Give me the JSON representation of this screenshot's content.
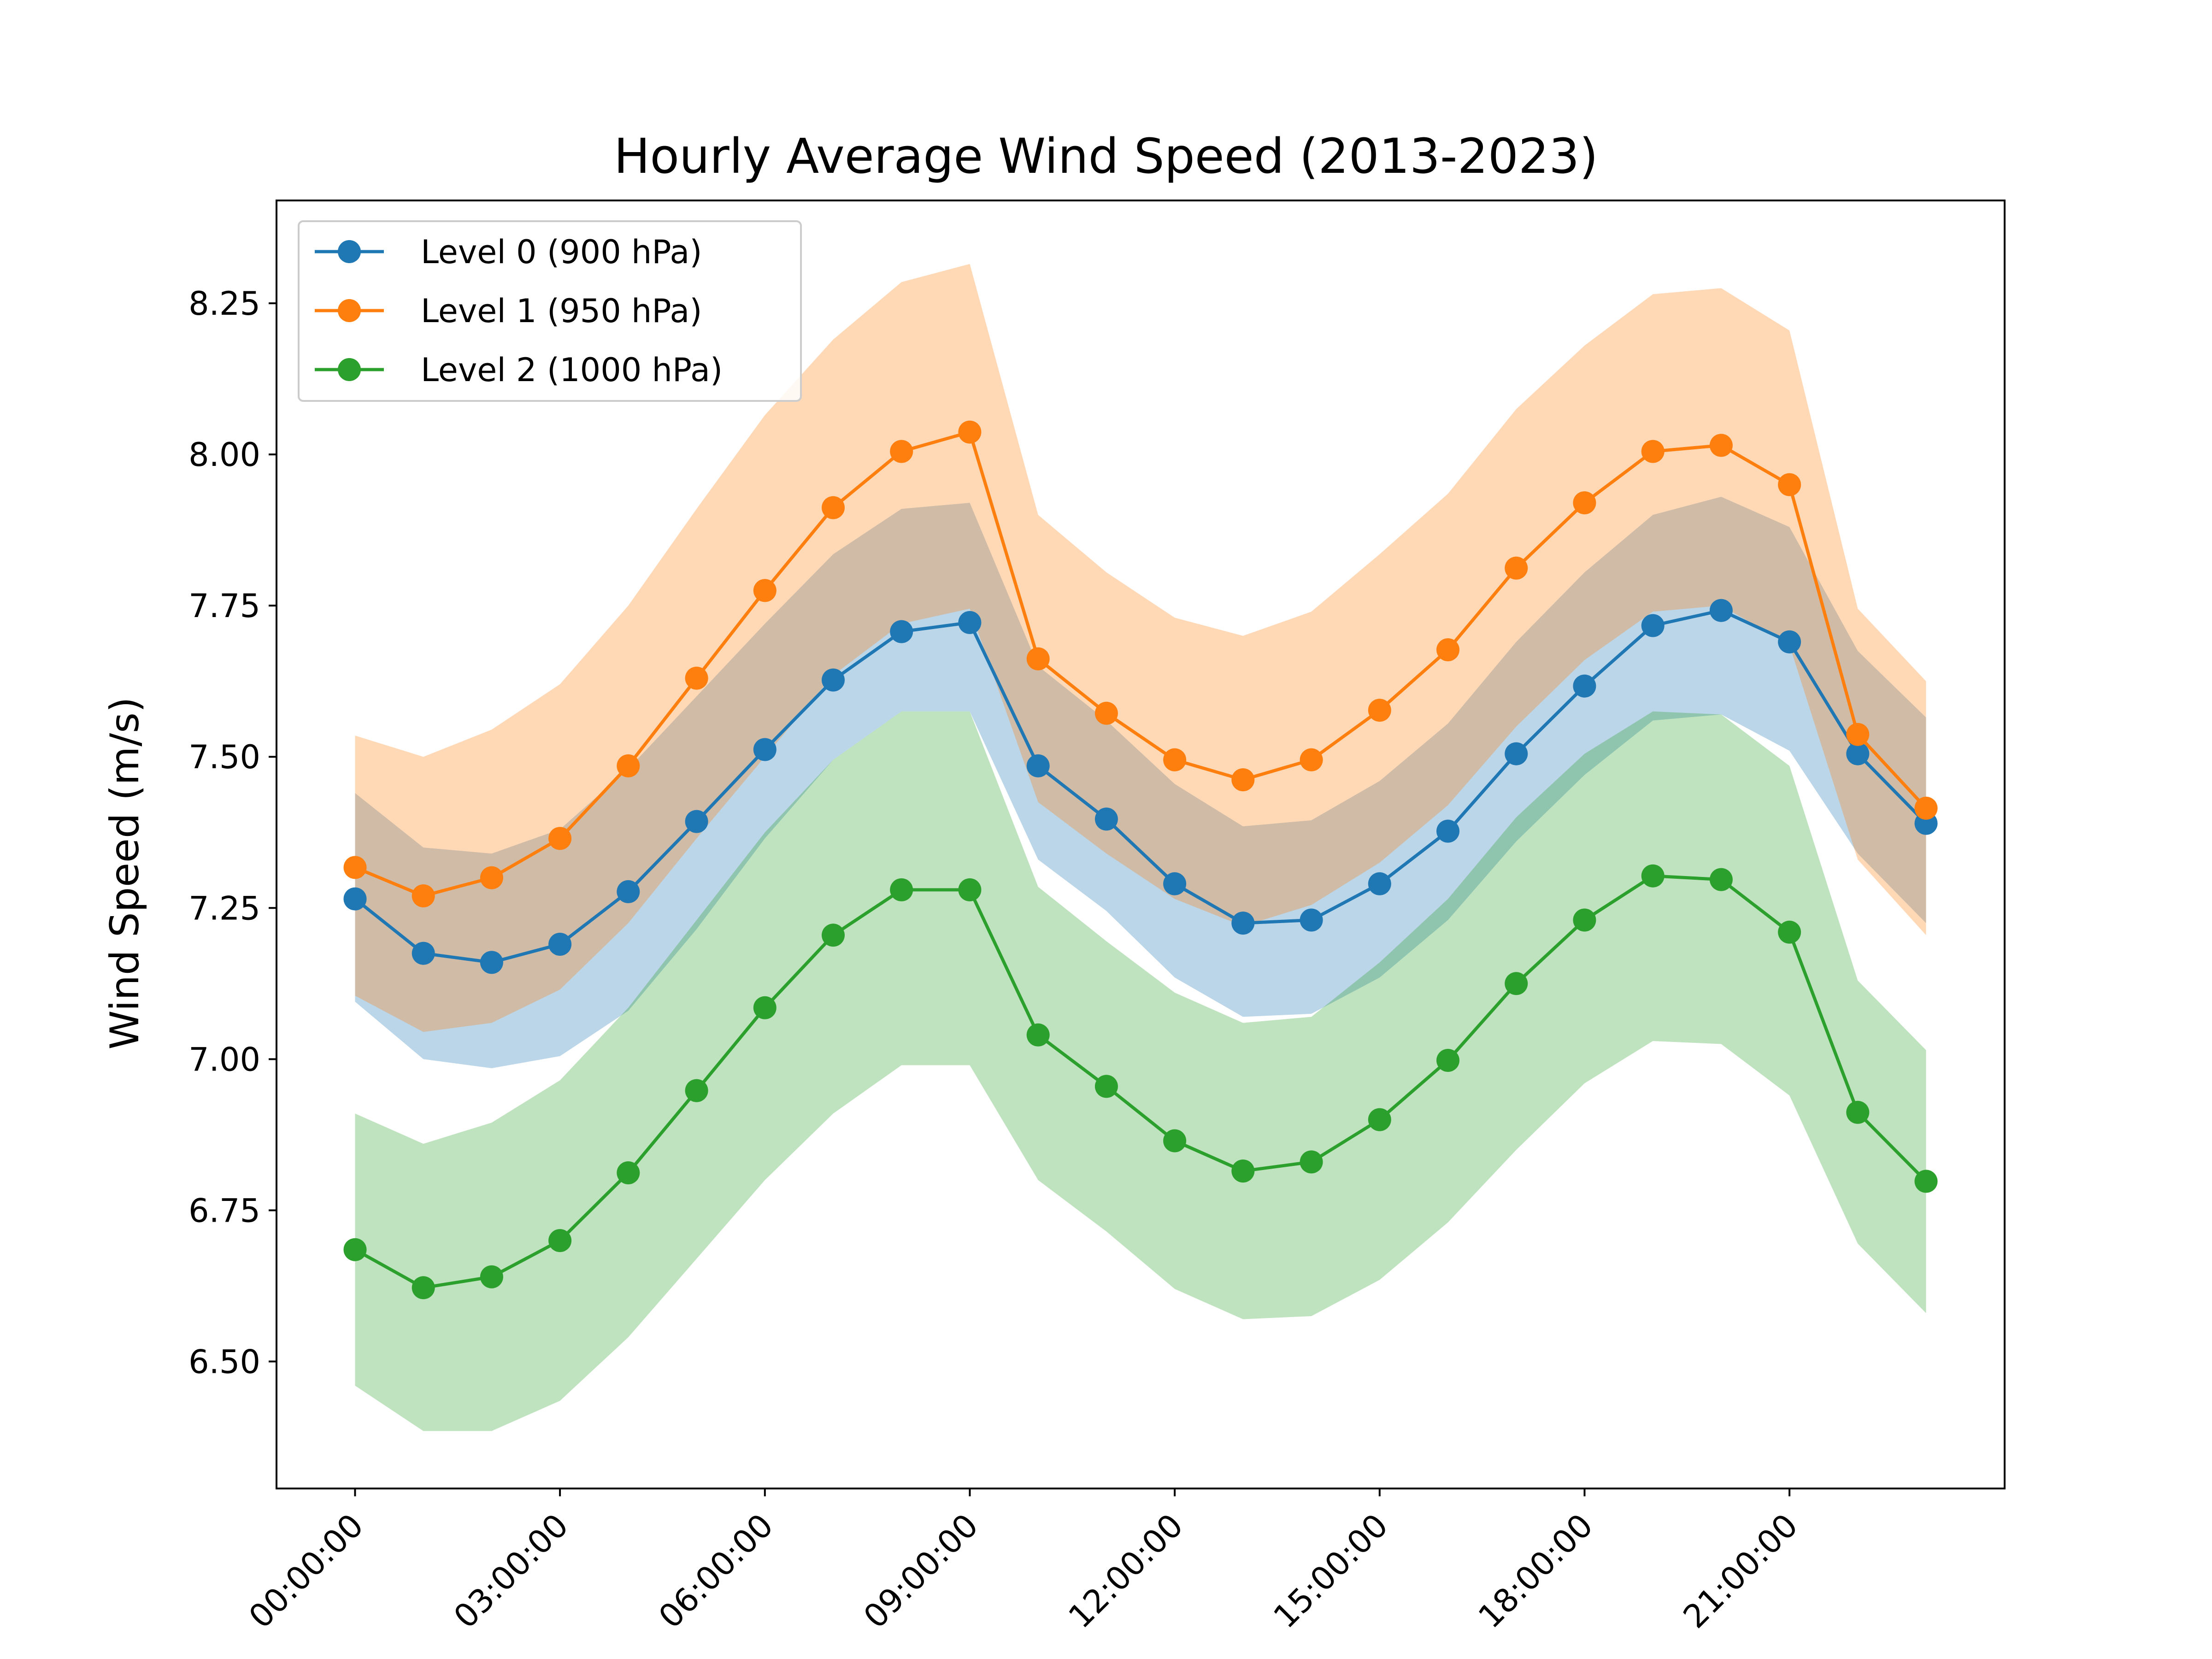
{
  "chart_data": {
    "type": "line",
    "title": "Hourly Average Wind Speed (2013-2023)",
    "xlabel": "",
    "ylabel": "Wind Speed (m/s)",
    "x": [
      "00:00:00",
      "01:00:00",
      "02:00:00",
      "03:00:00",
      "04:00:00",
      "05:00:00",
      "06:00:00",
      "07:00:00",
      "08:00:00",
      "09:00:00",
      "10:00:00",
      "11:00:00",
      "12:00:00",
      "13:00:00",
      "14:00:00",
      "15:00:00",
      "16:00:00",
      "17:00:00",
      "18:00:00",
      "19:00:00",
      "20:00:00",
      "21:00:00",
      "22:00:00",
      "23:00:00"
    ],
    "x_ticks": [
      "00:00:00",
      "03:00:00",
      "06:00:00",
      "09:00:00",
      "12:00:00",
      "15:00:00",
      "18:00:00",
      "21:00:00"
    ],
    "y_ticks": [
      "6.50",
      "6.75",
      "7.00",
      "7.25",
      "7.50",
      "7.75",
      "8.00",
      "8.25"
    ],
    "ylim": [
      6.29,
      8.42
    ],
    "xlim": [
      -1.15,
      24.15
    ],
    "grid": false,
    "legend_position": "top-left",
    "series": [
      {
        "name": "Level 0 (900 hPa)",
        "color": "#1f77b4",
        "band_color": "#a8c8e5",
        "values": [
          7.265,
          7.175,
          7.16,
          7.19,
          7.277,
          7.393,
          7.512,
          7.627,
          7.707,
          7.722,
          7.485,
          7.397,
          7.29,
          7.225,
          7.23,
          7.29,
          7.377,
          7.505,
          7.617,
          7.717,
          7.742,
          7.69,
          7.505,
          7.39
        ],
        "upper": [
          7.44,
          7.35,
          7.34,
          7.38,
          7.48,
          7.6,
          7.72,
          7.835,
          7.91,
          7.92,
          7.65,
          7.56,
          7.455,
          7.385,
          7.395,
          7.46,
          7.555,
          7.69,
          7.805,
          7.9,
          7.93,
          7.88,
          7.675,
          7.565
        ],
        "lower": [
          7.095,
          7.0,
          6.985,
          7.005,
          7.08,
          7.215,
          7.365,
          7.495,
          7.575,
          7.575,
          7.33,
          7.245,
          7.135,
          7.07,
          7.075,
          7.135,
          7.23,
          7.36,
          7.47,
          7.56,
          7.57,
          7.51,
          7.34,
          7.225
        ]
      },
      {
        "name": "Level 1 (950 hPa)",
        "color": "#ff7f0e",
        "band_color": "#ffd3ab",
        "values": [
          7.317,
          7.27,
          7.3,
          7.365,
          7.485,
          7.63,
          7.775,
          7.912,
          8.005,
          8.037,
          7.662,
          7.572,
          7.495,
          7.462,
          7.495,
          7.577,
          7.677,
          7.812,
          7.92,
          8.005,
          8.015,
          7.95,
          7.537,
          7.415
        ],
        "upper": [
          7.535,
          7.5,
          7.545,
          7.62,
          7.75,
          7.91,
          8.065,
          8.19,
          8.285,
          8.315,
          7.9,
          7.805,
          7.73,
          7.7,
          7.74,
          7.835,
          7.935,
          8.075,
          8.18,
          8.265,
          8.275,
          8.205,
          7.745,
          7.625
        ],
        "lower": [
          7.105,
          7.045,
          7.06,
          7.115,
          7.225,
          7.365,
          7.5,
          7.635,
          7.72,
          7.745,
          7.425,
          7.34,
          7.265,
          7.22,
          7.255,
          7.325,
          7.42,
          7.55,
          7.66,
          7.74,
          7.75,
          7.685,
          7.33,
          7.205
        ]
      },
      {
        "name": "Level 2 (1000 hPa)",
        "color": "#2ca02c",
        "band_color": "#b5e0b0",
        "values": [
          6.685,
          6.622,
          6.64,
          6.7,
          6.812,
          6.948,
          7.085,
          7.205,
          7.28,
          7.28,
          7.04,
          6.955,
          6.865,
          6.815,
          6.83,
          6.9,
          6.998,
          7.125,
          7.23,
          7.303,
          7.297,
          7.21,
          6.912,
          6.798
        ],
        "upper": [
          6.91,
          6.86,
          6.895,
          6.965,
          7.085,
          7.23,
          7.375,
          7.495,
          7.575,
          7.575,
          7.285,
          7.195,
          7.11,
          7.06,
          7.07,
          7.16,
          7.265,
          7.4,
          7.505,
          7.575,
          7.57,
          7.485,
          7.13,
          7.015
        ],
        "lower": [
          6.46,
          6.385,
          6.385,
          6.435,
          6.54,
          6.67,
          6.8,
          6.91,
          6.99,
          6.99,
          6.8,
          6.715,
          6.62,
          6.57,
          6.575,
          6.635,
          6.73,
          6.85,
          6.96,
          7.03,
          7.025,
          6.94,
          6.695,
          6.58
        ]
      }
    ]
  }
}
